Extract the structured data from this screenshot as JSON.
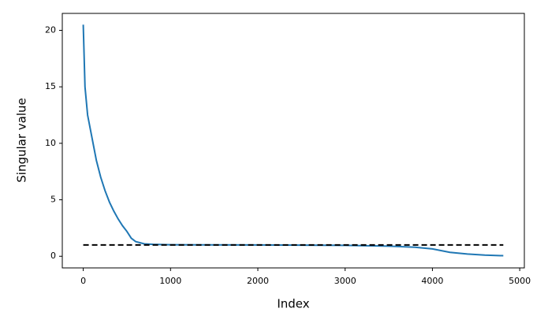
{
  "chart_data": {
    "type": "line",
    "xlabel": "Index",
    "ylabel": "Singular value",
    "x": [
      0,
      20,
      50,
      100,
      150,
      200,
      250,
      300,
      350,
      400,
      450,
      500,
      550,
      600,
      700,
      800,
      1000,
      2000,
      3000,
      3500,
      3800,
      4000,
      4200,
      4400,
      4600,
      4812
    ],
    "series": [
      {
        "color": "#1f77b4",
        "values": [
          20.5,
          15,
          12.5,
          10.5,
          8.5,
          7,
          5.8,
          4.8,
          4.0,
          3.3,
          2.7,
          2.2,
          1.6,
          1.3,
          1.1,
          1.05,
          1.02,
          1.0,
          0.97,
          0.9,
          0.8,
          0.65,
          0.35,
          0.2,
          0.1,
          0.05
        ]
      }
    ],
    "hline": {
      "y": 1,
      "xmin": 0,
      "xmax": 4812,
      "color": "#000000",
      "style": "dashed"
    },
    "xlim": [
      -240,
      5053
    ],
    "ylim": [
      -1.03,
      21.5
    ],
    "xticks": [
      0,
      1000,
      2000,
      3000,
      4000,
      5000
    ],
    "yticks": [
      0,
      5,
      10,
      15,
      20
    ]
  }
}
